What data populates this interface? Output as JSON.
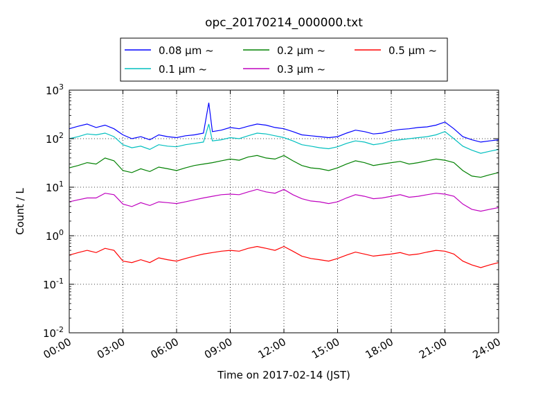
{
  "chart_data": {
    "type": "line",
    "title": "opc_20170214_000000.txt",
    "xlabel": "Time on 2017-02-14 (JST)",
    "ylabel": "Count / L",
    "x_range_hours": [
      0,
      24
    ],
    "x_ticks": [
      {
        "hour": 0,
        "label": "00:00"
      },
      {
        "hour": 3,
        "label": "03:00"
      },
      {
        "hour": 6,
        "label": "06:00"
      },
      {
        "hour": 9,
        "label": "09:00"
      },
      {
        "hour": 12,
        "label": "12:00"
      },
      {
        "hour": 15,
        "label": "15:00"
      },
      {
        "hour": 18,
        "label": "18:00"
      },
      {
        "hour": 21,
        "label": "21:00"
      },
      {
        "hour": 24,
        "label": "24:00"
      }
    ],
    "y_scale": "log",
    "ylim": [
      0.01,
      1000
    ],
    "y_ticks": [
      {
        "value": 0.01,
        "base": "10",
        "exp": "-2"
      },
      {
        "value": 0.1,
        "base": "10",
        "exp": "-1"
      },
      {
        "value": 1,
        "base": "10",
        "exp": "0"
      },
      {
        "value": 10,
        "base": "10",
        "exp": "1"
      },
      {
        "value": 100,
        "base": "10",
        "exp": "2"
      },
      {
        "value": 1000,
        "base": "10",
        "exp": "3"
      }
    ],
    "grid": "dotted",
    "legend_position": "top",
    "series": [
      {
        "name": "0.08 µm ~",
        "color": "#0000ff",
        "x": [
          0,
          0.5,
          1,
          1.5,
          2,
          2.5,
          3,
          3.5,
          4,
          4.5,
          5,
          5.5,
          6,
          6.5,
          7,
          7.5,
          7.8,
          8,
          8.5,
          9,
          9.5,
          10,
          10.5,
          11,
          11.5,
          12,
          12.5,
          13,
          13.5,
          14,
          14.5,
          15,
          15.5,
          16,
          16.5,
          17,
          17.5,
          18,
          18.5,
          19,
          19.5,
          20,
          20.5,
          21,
          21.5,
          22,
          22.5,
          23,
          23.5,
          24
        ],
        "y": [
          160,
          180,
          200,
          170,
          190,
          160,
          120,
          100,
          110,
          95,
          120,
          110,
          105,
          115,
          120,
          130,
          550,
          140,
          150,
          170,
          160,
          180,
          200,
          190,
          170,
          160,
          140,
          120,
          115,
          110,
          105,
          110,
          130,
          150,
          140,
          125,
          130,
          145,
          155,
          160,
          170,
          175,
          190,
          220,
          160,
          110,
          95,
          85,
          90,
          95
        ]
      },
      {
        "name": "0.1 µm ~",
        "color": "#00bfbf",
        "x": [
          0,
          0.5,
          1,
          1.5,
          2,
          2.5,
          3,
          3.5,
          4,
          4.5,
          5,
          5.5,
          6,
          6.5,
          7,
          7.5,
          7.8,
          8,
          8.5,
          9,
          9.5,
          10,
          10.5,
          11,
          11.5,
          12,
          12.5,
          13,
          13.5,
          14,
          14.5,
          15,
          15.5,
          16,
          16.5,
          17,
          17.5,
          18,
          18.5,
          19,
          19.5,
          20,
          20.5,
          21,
          21.5,
          22,
          22.5,
          23,
          23.5,
          24
        ],
        "y": [
          100,
          110,
          125,
          120,
          130,
          110,
          75,
          65,
          70,
          60,
          75,
          70,
          68,
          75,
          80,
          85,
          200,
          90,
          95,
          105,
          100,
          115,
          130,
          125,
          115,
          105,
          90,
          75,
          70,
          65,
          62,
          68,
          80,
          90,
          85,
          75,
          80,
          90,
          95,
          100,
          105,
          110,
          120,
          140,
          100,
          70,
          58,
          50,
          55,
          60
        ]
      },
      {
        "name": "0.2 µm ~",
        "color": "#008000",
        "x": [
          0,
          0.5,
          1,
          1.5,
          2,
          2.5,
          3,
          3.5,
          4,
          4.5,
          5,
          5.5,
          6,
          6.5,
          7,
          7.5,
          8,
          8.5,
          9,
          9.5,
          10,
          10.5,
          11,
          11.5,
          12,
          12.5,
          13,
          13.5,
          14,
          14.5,
          15,
          15.5,
          16,
          16.5,
          17,
          17.5,
          18,
          18.5,
          19,
          19.5,
          20,
          20.5,
          21,
          21.5,
          22,
          22.5,
          23,
          23.5,
          24
        ],
        "y": [
          25,
          28,
          32,
          30,
          40,
          35,
          22,
          20,
          24,
          21,
          26,
          24,
          22,
          25,
          28,
          30,
          32,
          35,
          38,
          36,
          42,
          45,
          40,
          38,
          45,
          35,
          28,
          25,
          24,
          22,
          25,
          30,
          35,
          32,
          28,
          30,
          32,
          34,
          30,
          32,
          35,
          38,
          36,
          32,
          22,
          17,
          16,
          18,
          20
        ]
      },
      {
        "name": "0.3 µm ~",
        "color": "#bf00bf",
        "x": [
          0,
          0.5,
          1,
          1.5,
          2,
          2.5,
          3,
          3.5,
          4,
          4.5,
          5,
          5.5,
          6,
          6.5,
          7,
          7.5,
          8,
          8.5,
          9,
          9.5,
          10,
          10.5,
          11,
          11.5,
          12,
          12.5,
          13,
          13.5,
          14,
          14.5,
          15,
          15.5,
          16,
          16.5,
          17,
          17.5,
          18,
          18.5,
          19,
          19.5,
          20,
          20.5,
          21,
          21.5,
          22,
          22.5,
          23,
          23.5,
          24
        ],
        "y": [
          5,
          5.5,
          6,
          6,
          7.5,
          7,
          4.5,
          4,
          4.8,
          4.2,
          5,
          4.8,
          4.6,
          5,
          5.5,
          6,
          6.5,
          7,
          7.2,
          7,
          8,
          9,
          8,
          7.5,
          9,
          7,
          5.8,
          5.2,
          5,
          4.6,
          5,
          6,
          7,
          6.5,
          5.8,
          6,
          6.5,
          7,
          6.2,
          6.5,
          7,
          7.5,
          7.2,
          6.5,
          4.5,
          3.5,
          3.2,
          3.5,
          3.8
        ]
      },
      {
        "name": "0.5 µm ~",
        "color": "#ff0000",
        "x": [
          0,
          0.5,
          1,
          1.5,
          2,
          2.5,
          3,
          3.5,
          4,
          4.5,
          5,
          5.5,
          6,
          6.5,
          7,
          7.5,
          8,
          8.5,
          9,
          9.5,
          10,
          10.5,
          11,
          11.5,
          12,
          12.5,
          13,
          13.5,
          14,
          14.5,
          15,
          15.5,
          16,
          16.5,
          17,
          17.5,
          18,
          18.5,
          19,
          19.5,
          20,
          20.5,
          21,
          21.5,
          22,
          22.5,
          23,
          23.5,
          24
        ],
        "y": [
          0.4,
          0.45,
          0.5,
          0.45,
          0.55,
          0.5,
          0.3,
          0.28,
          0.32,
          0.28,
          0.35,
          0.32,
          0.3,
          0.34,
          0.38,
          0.42,
          0.45,
          0.48,
          0.5,
          0.48,
          0.55,
          0.6,
          0.55,
          0.5,
          0.6,
          0.48,
          0.38,
          0.34,
          0.32,
          0.3,
          0.34,
          0.4,
          0.46,
          0.42,
          0.38,
          0.4,
          0.42,
          0.45,
          0.4,
          0.42,
          0.46,
          0.5,
          0.48,
          0.42,
          0.3,
          0.25,
          0.22,
          0.25,
          0.28
        ]
      }
    ]
  }
}
